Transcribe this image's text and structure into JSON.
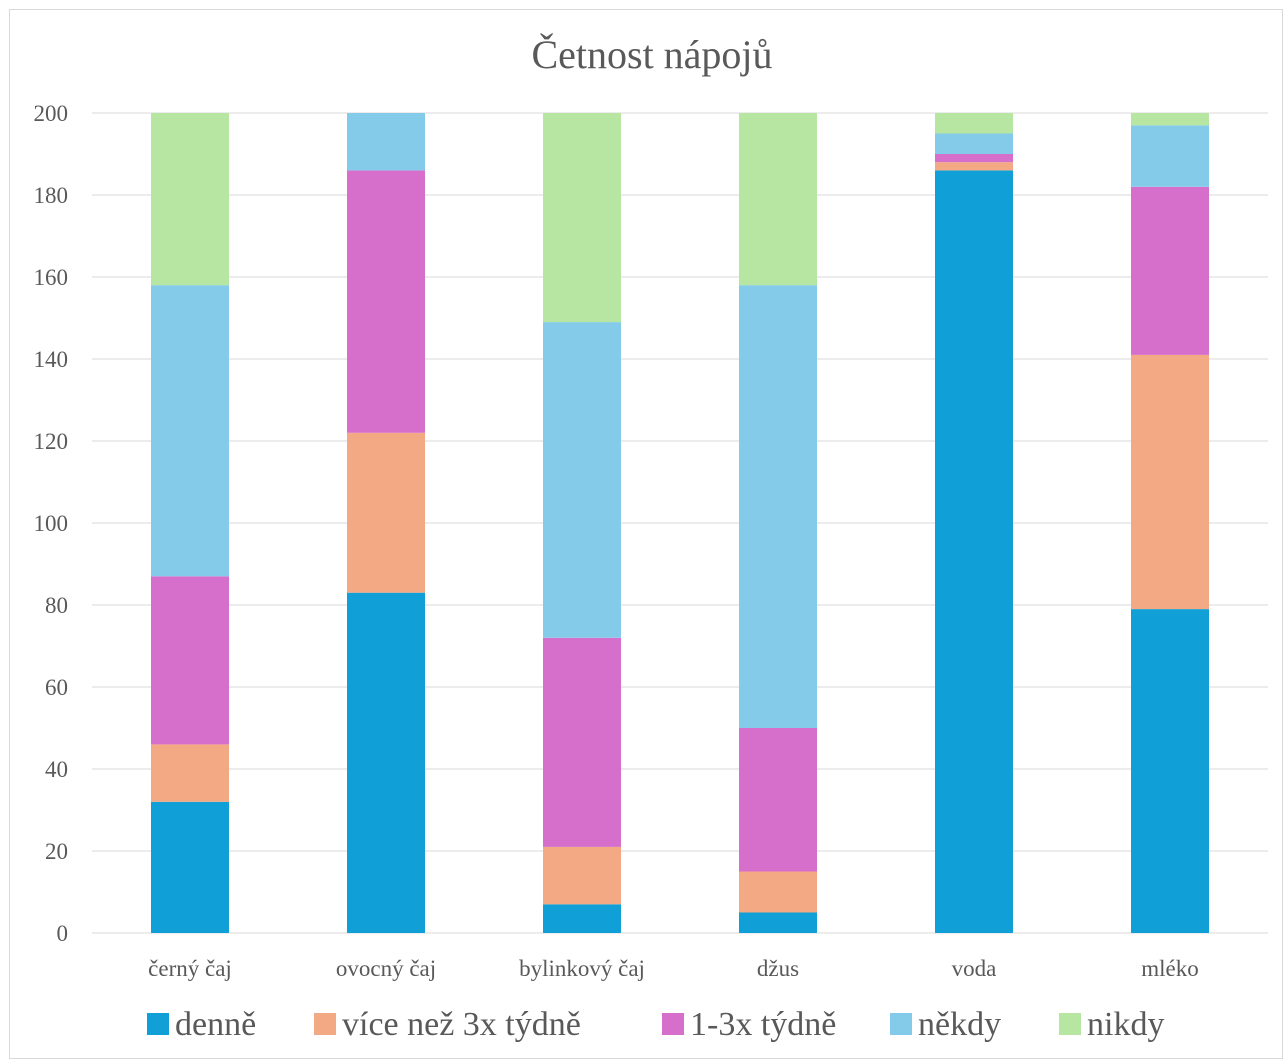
{
  "chart_data": {
    "type": "bar",
    "stacked": true,
    "title": "Četnost nápojů",
    "categories": [
      "černý čaj",
      "ovocný čaj",
      "bylinkový čaj",
      "džus",
      "voda",
      "mléko"
    ],
    "series": [
      {
        "name": "denně",
        "color": "#109fd6",
        "values": [
          32,
          83,
          7,
          5,
          186,
          79
        ]
      },
      {
        "name": "více než 3x týdně",
        "color": "#f2a984",
        "values": [
          14,
          39,
          14,
          10,
          2,
          62
        ]
      },
      {
        "name": "1-3x týdně",
        "color": "#d66fcb",
        "values": [
          41,
          64,
          51,
          35,
          2,
          41
        ]
      },
      {
        "name": "někdy",
        "color": "#84cbea",
        "values": [
          71,
          14,
          77,
          108,
          5,
          15
        ]
      },
      {
        "name": "nikdy",
        "color": "#b6e6a1",
        "values": [
          42,
          0,
          51,
          42,
          5,
          3
        ]
      }
    ],
    "ylim": [
      0,
      200
    ],
    "yticks": [
      0,
      20,
      40,
      60,
      80,
      100,
      120,
      140,
      160,
      180,
      200
    ],
    "grid": true,
    "legend": "bottom",
    "xlabel": "",
    "ylabel": ""
  }
}
